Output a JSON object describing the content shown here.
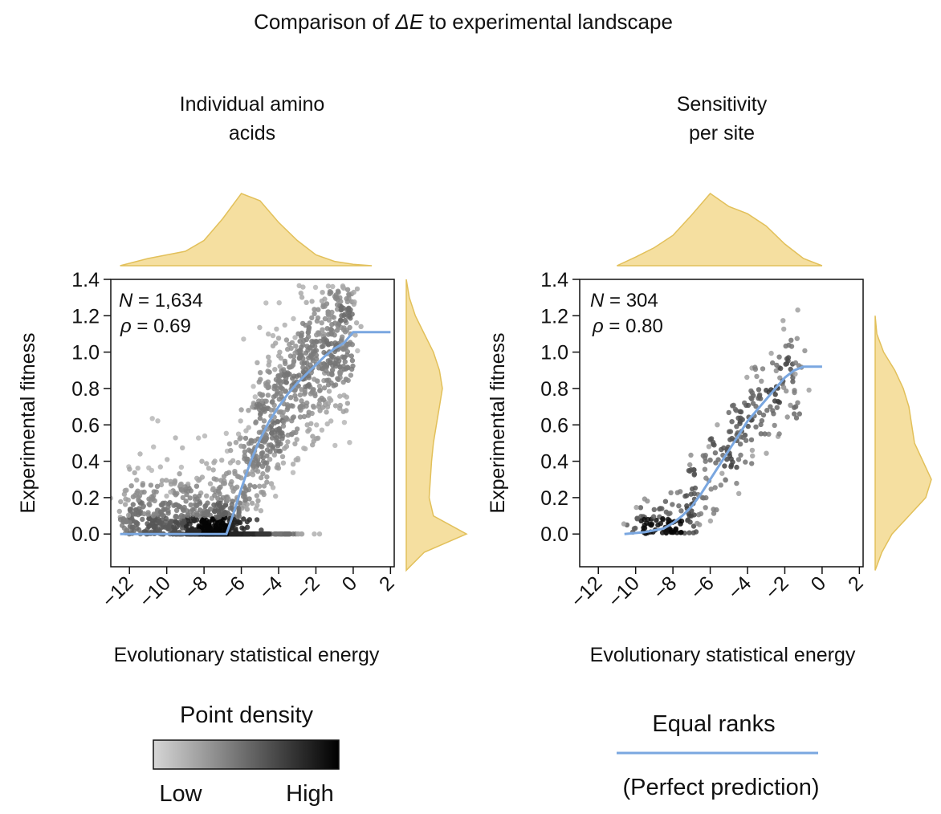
{
  "figure": {
    "title_prefix": "Comparison of ",
    "title_symbol": "ΔE",
    "title_suffix": " to experimental landscape"
  },
  "chart_data": [
    {
      "type": "scatter",
      "title_line1": "Individual amino",
      "title_line2": "acids",
      "xlabel": "Evolutionary statistical energy",
      "ylabel": "Experimental fitness",
      "xlim": [
        -13,
        2.2
      ],
      "ylim": [
        -0.18,
        1.4
      ],
      "xticks": [
        "−12",
        "−10",
        "−8",
        "−6",
        "−4",
        "−2",
        "0",
        "2"
      ],
      "yticks": [
        "0.0",
        "0.2",
        "0.4",
        "0.6",
        "0.8",
        "1.0",
        "1.2",
        "1.4"
      ],
      "n_label": "N",
      "n_value": " = 1,634",
      "rho_label": "ρ",
      "rho_value": " = 0.69",
      "point_count": 1634,
      "zero_fitness_fraction": 0.2,
      "curve_color": "#7aa7e0",
      "marginal_color": "#f5dfa0",
      "equal_ranks_curve": {
        "x": [
          -12.5,
          -7.5,
          -6.8,
          -6.4,
          -6.0,
          -5.5,
          -5.0,
          -4.5,
          -4.0,
          -3.5,
          -3.0,
          -2.5,
          -2.0,
          -1.5,
          -1.0,
          -0.5,
          0.0,
          2.0
        ],
        "y": [
          0.0,
          0.0,
          0.0,
          0.12,
          0.25,
          0.4,
          0.52,
          0.62,
          0.7,
          0.77,
          0.83,
          0.88,
          0.93,
          0.98,
          1.02,
          1.05,
          1.11,
          1.11
        ]
      },
      "x_marginal_density": {
        "x": [
          -12.5,
          -11,
          -10,
          -9,
          -8,
          -7,
          -6,
          -5,
          -4,
          -3,
          -2,
          -1,
          0,
          1
        ],
        "y": [
          0.0,
          0.1,
          0.15,
          0.2,
          0.35,
          0.65,
          1.0,
          0.9,
          0.6,
          0.35,
          0.15,
          0.06,
          0.02,
          0.0
        ]
      },
      "y_marginal_density": {
        "y": [
          -0.2,
          -0.1,
          0.0,
          0.1,
          0.2,
          0.3,
          0.4,
          0.5,
          0.6,
          0.7,
          0.8,
          0.9,
          1.0,
          1.1,
          1.2,
          1.3,
          1.4
        ],
        "x": [
          0.0,
          0.3,
          1.0,
          0.45,
          0.38,
          0.4,
          0.42,
          0.45,
          0.5,
          0.55,
          0.6,
          0.55,
          0.45,
          0.3,
          0.15,
          0.05,
          0.0
        ]
      }
    },
    {
      "type": "scatter",
      "title_line1": "Sensitivity",
      "title_line2": "per site",
      "xlabel": "Evolutionary statistical energy",
      "ylabel": "Experimental fitness",
      "xlim": [
        -13,
        2.2
      ],
      "ylim": [
        -0.18,
        1.4
      ],
      "xticks": [
        "−12",
        "−10",
        "−8",
        "−6",
        "−4",
        "−2",
        "0",
        "2"
      ],
      "yticks": [
        "0.0",
        "0.2",
        "0.4",
        "0.6",
        "0.8",
        "1.0",
        "1.2",
        "1.4"
      ],
      "n_label": "N",
      "n_value": " = 304",
      "rho_label": "ρ",
      "rho_value": " = 0.80",
      "point_count": 304,
      "zero_fitness_fraction": 0.0,
      "curve_color": "#7aa7e0",
      "marginal_color": "#f5dfa0",
      "equal_ranks_curve": {
        "x": [
          -10.6,
          -9.5,
          -8.5,
          -8.0,
          -7.5,
          -7.0,
          -6.5,
          -6.0,
          -5.5,
          -5.0,
          -4.5,
          -4.0,
          -3.5,
          -3.0,
          -2.5,
          -2.0,
          -1.5,
          -1.0,
          0.0
        ],
        "y": [
          0.0,
          0.01,
          0.03,
          0.06,
          0.1,
          0.15,
          0.22,
          0.3,
          0.38,
          0.46,
          0.54,
          0.62,
          0.68,
          0.74,
          0.8,
          0.86,
          0.9,
          0.92,
          0.92
        ]
      },
      "x_marginal_density": {
        "x": [
          -11,
          -10,
          -9,
          -8,
          -7,
          -6,
          -5,
          -4,
          -3,
          -2,
          -1,
          0
        ],
        "y": [
          0.0,
          0.12,
          0.25,
          0.42,
          0.7,
          1.0,
          0.82,
          0.72,
          0.55,
          0.3,
          0.1,
          0.0
        ]
      },
      "y_marginal_density": {
        "y": [
          -0.2,
          -0.1,
          0.0,
          0.1,
          0.2,
          0.3,
          0.4,
          0.5,
          0.6,
          0.7,
          0.8,
          0.9,
          1.0,
          1.1,
          1.2
        ],
        "x": [
          0.0,
          0.12,
          0.3,
          0.6,
          0.9,
          1.0,
          0.85,
          0.7,
          0.65,
          0.6,
          0.5,
          0.35,
          0.15,
          0.03,
          0.0
        ]
      }
    }
  ],
  "legend": {
    "density_title": "Point density",
    "density_low": "Low",
    "density_high": "High",
    "equal_ranks_title": "Equal ranks",
    "equal_ranks_subtitle": "(Perfect prediction)",
    "gradient_from": "#d6d6d6",
    "gradient_to": "#000000",
    "line_color": "#7aa7e0"
  }
}
